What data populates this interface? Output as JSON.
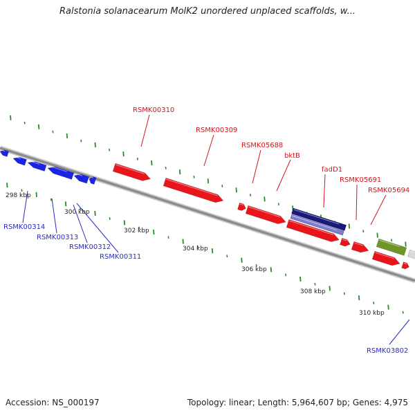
{
  "title": "Ralstonia solanacearum MolK2 unordered unplaced scaffolds, w...",
  "colors": {
    "background": "#ffffff",
    "backbone": "#8c8c8c",
    "tick": "#2a8a2a",
    "forward_gene": "#e8161b",
    "reverse_gene": "#1b24e6",
    "label_forward": "#d4141c",
    "label_reverse": "#2a2ac8",
    "selected_gene": "#1a1a7a",
    "green_gene": "#6f9428"
  },
  "scale_labels": [
    "298 kbp",
    "300 kbp",
    "302 kbp",
    "304 kbp",
    "306 kbp",
    "308 kbp",
    "310 kbp"
  ],
  "forward_gene_labels": [
    "RSMK00310",
    "RSMK00309",
    "RSMK05688",
    "bktB",
    "fadD1",
    "RSMK05691",
    "RSMK05694"
  ],
  "reverse_gene_labels": [
    "RSMK00314",
    "RSMK00313",
    "RSMK00312",
    "RSMK00311",
    "RSMK03802"
  ],
  "footer": {
    "accession": "Accession: NS_000197",
    "topology": "Topology: linear; Length: 5,964,607 bp; Genes: 4,975"
  }
}
